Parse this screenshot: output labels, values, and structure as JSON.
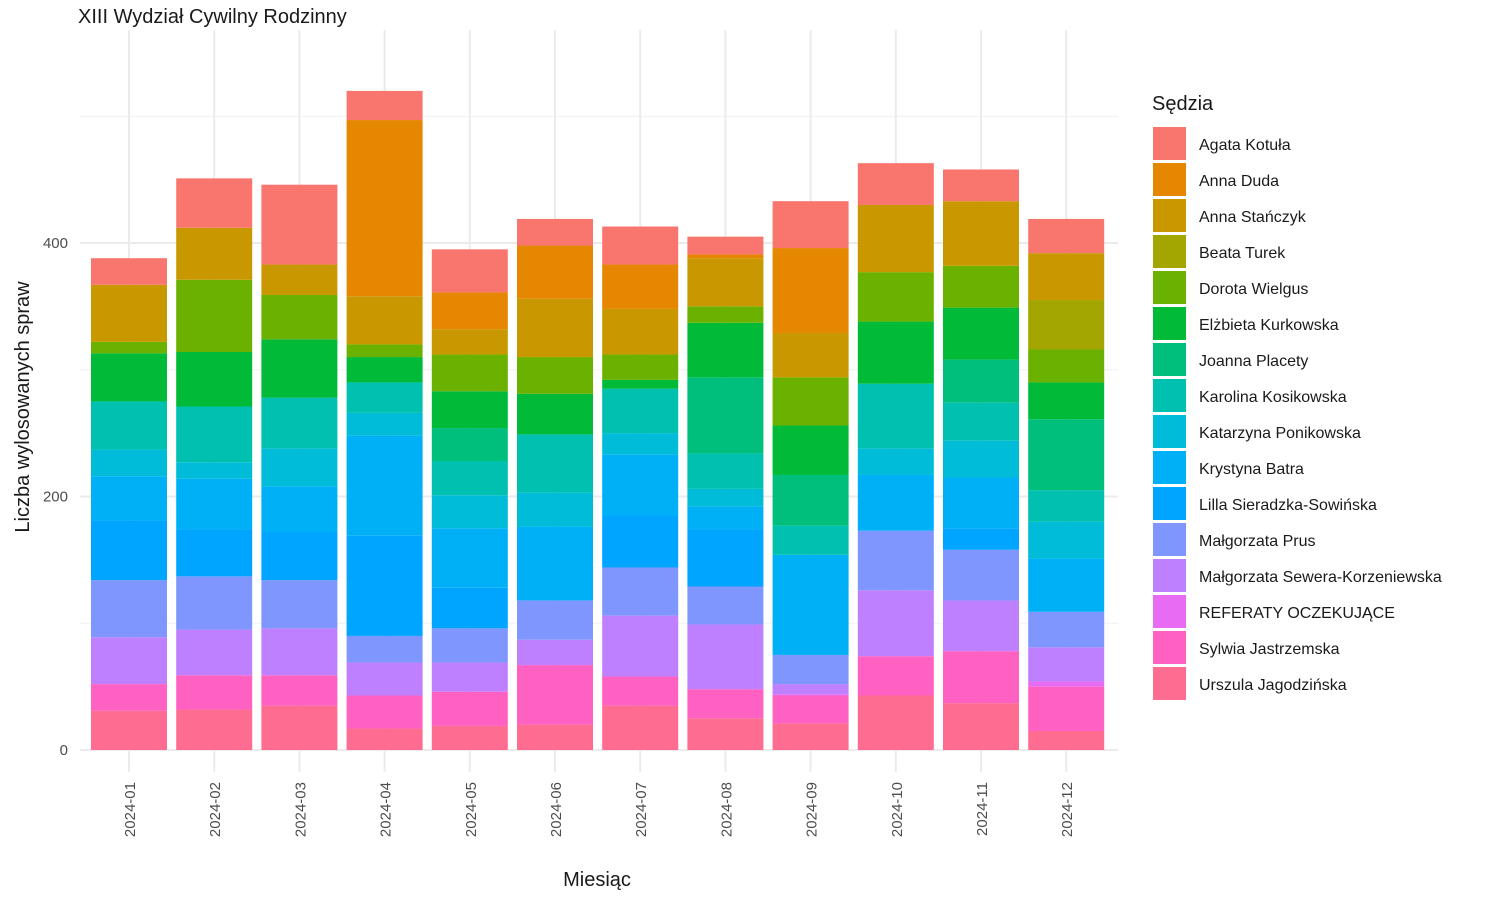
{
  "chart_data": {
    "type": "bar",
    "stacked": true,
    "title": "XIII Wydział Cywilny Rodzinny",
    "xlabel": "Miesiąc",
    "ylabel": "Liczba wylosowanych spraw",
    "ylim": [
      0,
      560
    ],
    "y_ticks": [
      0,
      200,
      400
    ],
    "legend_title": "Sędzia",
    "legend_position": "right",
    "grid": true,
    "categories": [
      "2024-01",
      "2024-02",
      "2024-03",
      "2024-04",
      "2024-05",
      "2024-06",
      "2024-07",
      "2024-08",
      "2024-09",
      "2024-10",
      "2024-11",
      "2024-12"
    ],
    "series": [
      {
        "name": "Agata Kotuła",
        "color": "#F8766D",
        "values": [
          21,
          39,
          63,
          23,
          34,
          21,
          30,
          14,
          37,
          33,
          25,
          27
        ]
      },
      {
        "name": "Anna Duda",
        "color": "#E58700",
        "values": [
          0,
          0,
          0,
          139,
          29,
          42,
          35,
          3,
          67,
          0,
          0,
          0
        ]
      },
      {
        "name": "Anna Stańczyk",
        "color": "#C99800",
        "values": [
          45,
          41,
          24,
          38,
          20,
          46,
          36,
          38,
          35,
          53,
          51,
          37
        ]
      },
      {
        "name": "Beata Turek",
        "color": "#A3A500",
        "values": [
          0,
          0,
          0,
          0,
          0,
          0,
          0,
          0,
          0,
          0,
          0,
          39
        ]
      },
      {
        "name": "Dorota Wielgus",
        "color": "#6BB100",
        "values": [
          9,
          57,
          35,
          10,
          29,
          29,
          20,
          13,
          38,
          39,
          33,
          26
        ]
      },
      {
        "name": "Elżbieta Kurkowska",
        "color": "#00BA38",
        "values": [
          38,
          43,
          46,
          20,
          29,
          32,
          7,
          43,
          39,
          49,
          41,
          29
        ]
      },
      {
        "name": "Joanna Placety",
        "color": "#00BF7D",
        "values": [
          0,
          0,
          0,
          0,
          26,
          0,
          0,
          60,
          40,
          0,
          34,
          56
        ]
      },
      {
        "name": "Karolina Kosikowska",
        "color": "#00C0AF",
        "values": [
          38,
          44,
          40,
          24,
          27,
          46,
          35,
          28,
          23,
          51,
          30,
          25
        ]
      },
      {
        "name": "Katarzyna Ponikowska",
        "color": "#00BCD8",
        "values": [
          21,
          13,
          30,
          18,
          26,
          27,
          17,
          14,
          0,
          21,
          29,
          29
        ]
      },
      {
        "name": "Krystyna Batra",
        "color": "#00B0F6",
        "values": [
          35,
          40,
          36,
          79,
          47,
          58,
          48,
          18,
          79,
          44,
          40,
          42
        ]
      },
      {
        "name": "Lilla Sieradzka-Sowińska",
        "color": "#00A5FF",
        "values": [
          47,
          37,
          38,
          79,
          32,
          0,
          41,
          45,
          0,
          0,
          17,
          0
        ]
      },
      {
        "name": "Małgorzata Prus",
        "color": "#7F96FF",
        "values": [
          45,
          42,
          38,
          21,
          27,
          31,
          38,
          30,
          23,
          47,
          40,
          28
        ]
      },
      {
        "name": "Małgorzata Sewera-Korzeniewska",
        "color": "#BE80FF",
        "values": [
          37,
          36,
          37,
          26,
          23,
          20,
          48,
          51,
          8,
          52,
          40,
          27
        ]
      },
      {
        "name": "REFERATY OCZEKUJĄCE",
        "color": "#E76BF3",
        "values": [
          0,
          0,
          0,
          0,
          0,
          0,
          0,
          0,
          1,
          0,
          0,
          4
        ]
      },
      {
        "name": "Sylwia Jastrzemska",
        "color": "#FF61C3",
        "values": [
          21,
          27,
          24,
          26,
          27,
          47,
          23,
          23,
          22,
          31,
          41,
          35
        ]
      },
      {
        "name": "Urszula Jagodzińska",
        "color": "#FF6C91",
        "values": [
          31,
          32,
          35,
          17,
          19,
          20,
          35,
          25,
          21,
          43,
          37,
          15
        ]
      }
    ]
  }
}
